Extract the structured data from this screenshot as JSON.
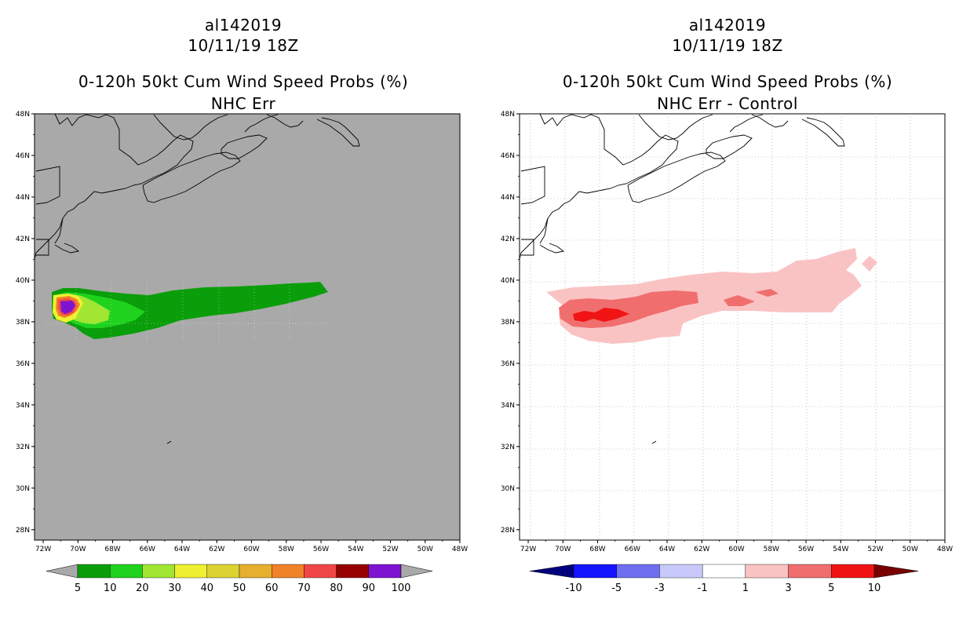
{
  "left": {
    "storm": "al142019",
    "datetime": "10/11/19 18Z",
    "title": "0-120h 50kt Cum Wind Speed Probs (%)",
    "subtitle": "NHC Err",
    "bg_color": "#a9a9a9",
    "colorbar": {
      "labels": [
        "5",
        "10",
        "20",
        "30",
        "40",
        "50",
        "60",
        "70",
        "80",
        "90",
        "100"
      ],
      "colors": [
        "#a9a9a9",
        "#0a9e0a",
        "#1ed21e",
        "#a0e632",
        "#f0f032",
        "#dcd232",
        "#e6af2d",
        "#f08228",
        "#f04646",
        "#960000",
        "#7d14d2",
        "#a9a9a9"
      ]
    }
  },
  "right": {
    "storm": "al142019",
    "datetime": "10/11/19 18Z",
    "title": "0-120h 50kt Cum Wind Speed Probs (%)",
    "subtitle": "NHC Err - Control",
    "bg_color": "#ffffff",
    "colorbar": {
      "labels": [
        "-10",
        "-5",
        "-3",
        "-1",
        "1",
        "3",
        "5",
        "10"
      ],
      "colors": [
        "#00007d",
        "#1414ff",
        "#6e6ef0",
        "#c8c8fa",
        "#ffffff",
        "#fac3c3",
        "#f06e6e",
        "#f01414",
        "#780000"
      ]
    }
  },
  "axes": {
    "lat_labels": [
      "48N",
      "46N",
      "44N",
      "42N",
      "40N",
      "38N",
      "36N",
      "34N",
      "32N",
      "30N",
      "28N"
    ],
    "lon_labels": [
      "72W",
      "70W",
      "68W",
      "66W",
      "64W",
      "62W",
      "60W",
      "58W",
      "56W",
      "54W",
      "52W",
      "50W",
      "48W"
    ]
  },
  "map_extent": {
    "lon_min": -72.5,
    "lon_max": -48,
    "lat_min": 27.5,
    "lat_max": 48
  }
}
